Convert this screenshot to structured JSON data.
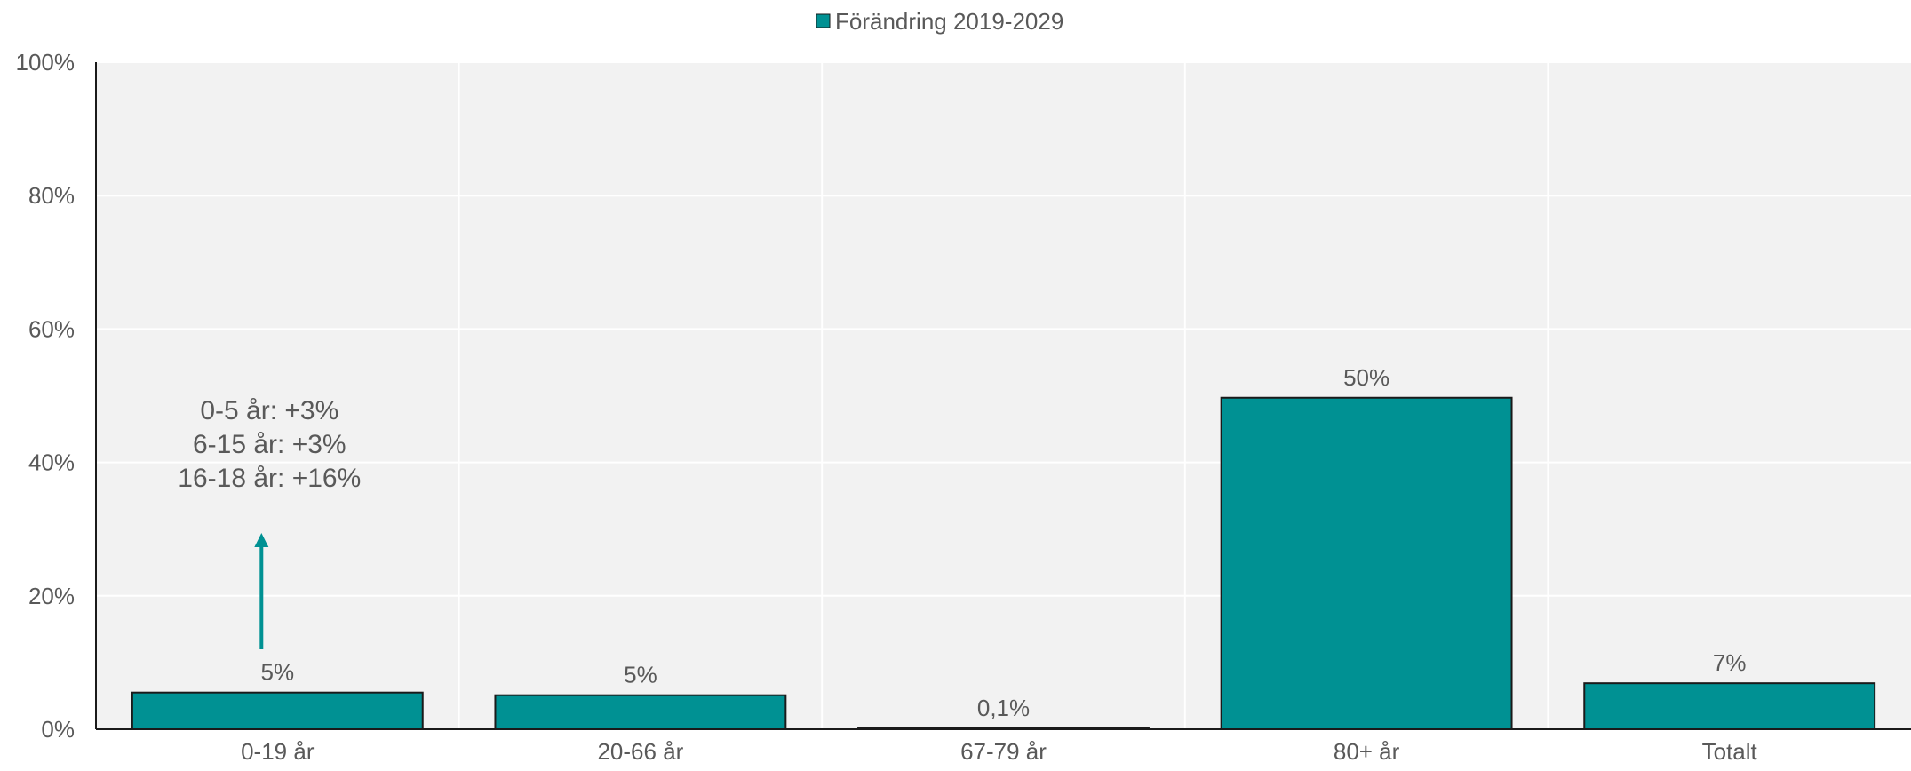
{
  "chart_data": {
    "type": "bar",
    "title": "",
    "xlabel": "",
    "ylabel": "",
    "categories": [
      "0-19 år",
      "20-66 år",
      "67-79 år",
      "80+ år",
      "Totalt"
    ],
    "series": [
      {
        "name": "Förändring 2019-2029",
        "values": [
          5.5,
          5.1,
          0.1,
          49.7,
          6.9
        ],
        "labels": [
          "5%",
          "5%",
          "0,1%",
          "50%",
          "7%"
        ]
      }
    ],
    "ylim": [
      0,
      100
    ],
    "yticks": [
      0,
      20,
      40,
      60,
      80,
      100
    ],
    "ytick_labels": [
      "0%",
      "20%",
      "40%",
      "60%",
      "80%",
      "100%"
    ],
    "grid": true,
    "legend": "top-center",
    "annotation": {
      "category": "0-19 år",
      "lines": [
        "0-5 år: +3%",
        "6-15 år: +3%",
        "16-18 år: +16%"
      ],
      "arrow": "up"
    },
    "colors": {
      "bar": "#009193",
      "bar_edge": "#1a1a1a",
      "plot_bg": "#f2f2f2",
      "grid": "#ffffff",
      "axis": "#1a1a1a",
      "text": "#595959"
    }
  }
}
